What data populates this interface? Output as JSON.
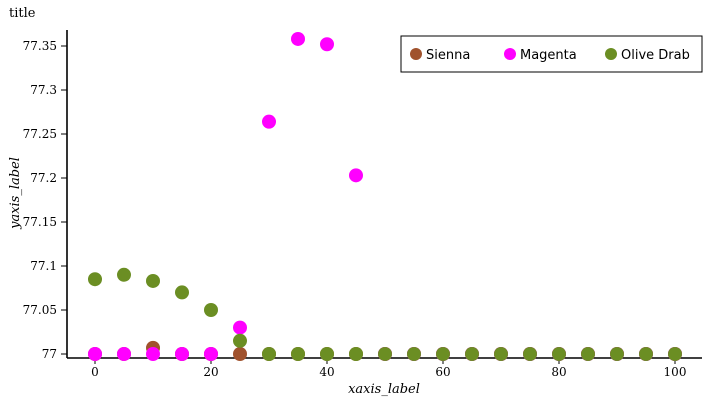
{
  "chart_data": {
    "type": "scatter",
    "title": "title",
    "xlabel": "xaxis_label",
    "ylabel": "yaxis_label",
    "xlim": [
      -5,
      105
    ],
    "ylim": [
      76.993,
      77.365
    ],
    "xticks": [
      0,
      20,
      40,
      60,
      80,
      100
    ],
    "xtick_labels": [
      "0",
      "20",
      "40",
      "60",
      "80",
      "100"
    ],
    "yticks": [
      77,
      77.05,
      77.1,
      77.15,
      77.2,
      77.25,
      77.3,
      77.35
    ],
    "ytick_labels": [
      "77",
      "77.05",
      "77.1",
      "77.15",
      "77.2",
      "77.25",
      "77.3",
      "77.35"
    ],
    "grid": false,
    "legend_position": "top-right",
    "x": [
      0,
      5,
      10,
      15,
      20,
      25,
      30,
      35,
      40,
      45,
      50,
      55,
      60,
      65,
      70,
      75,
      80,
      85,
      90,
      95,
      100
    ],
    "series": [
      {
        "name": "Sienna",
        "color": "#a0522d",
        "values": [
          77,
          77,
          77.007,
          77,
          77,
          77,
          77,
          77,
          77,
          77,
          77,
          77,
          77,
          77,
          77,
          77,
          77,
          77,
          77,
          77,
          77
        ]
      },
      {
        "name": "Magenta",
        "color": "#ff00ff",
        "values": [
          77,
          77,
          77,
          77,
          77,
          77.03,
          77.264,
          77.358,
          77.352,
          77.203,
          77,
          77,
          77,
          77,
          77,
          77,
          77,
          77,
          77,
          77,
          77
        ]
      },
      {
        "name": "Olive Drab",
        "color": "#6b8e23",
        "values": [
          77.085,
          77.09,
          77.083,
          77.07,
          77.05,
          77.015,
          77,
          77,
          77,
          77,
          77,
          77,
          77,
          77,
          77,
          77,
          77,
          77,
          77,
          77,
          77
        ]
      }
    ]
  }
}
